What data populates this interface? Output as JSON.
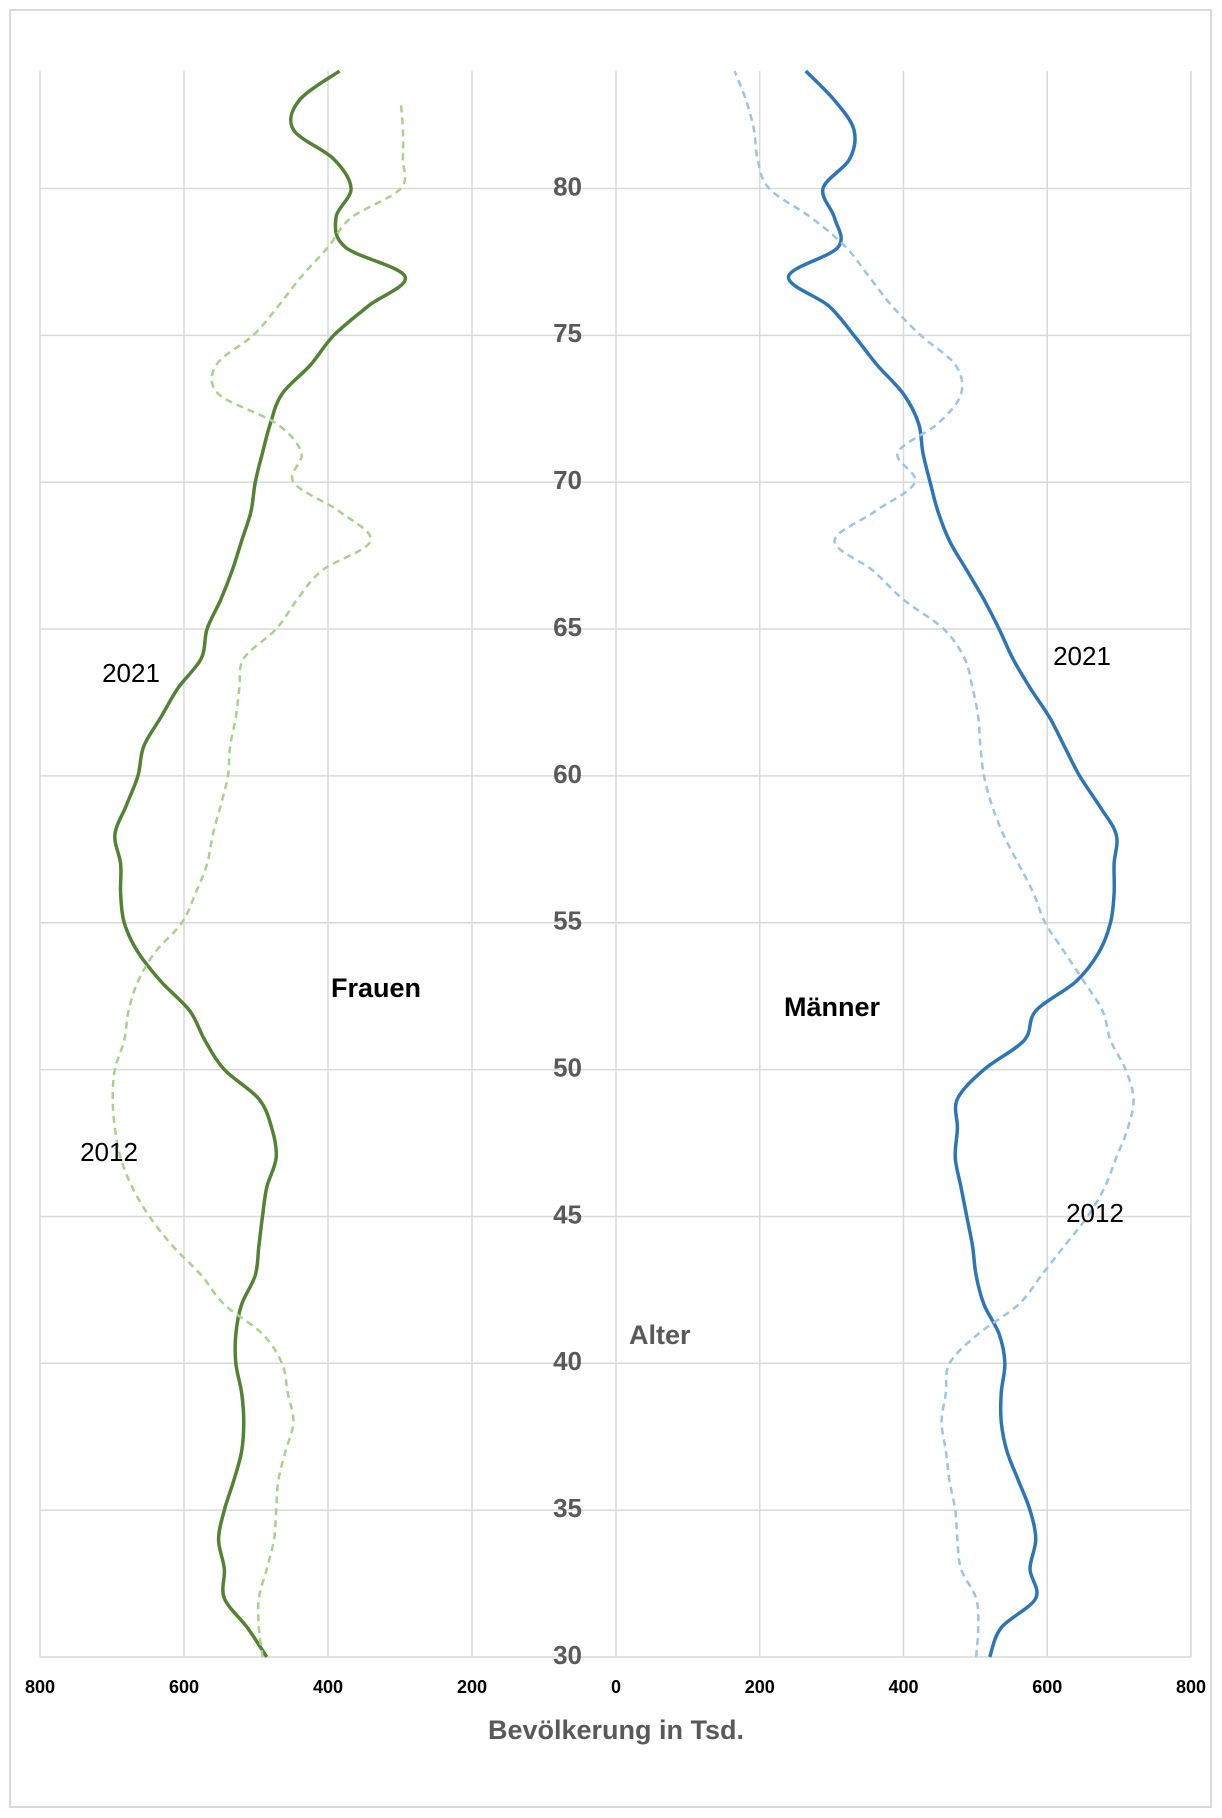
{
  "chart_data": [
    {
      "type": "line",
      "label": "Frauen",
      "y": [
        30,
        31,
        32,
        33,
        34,
        35,
        36,
        37,
        38,
        39,
        40,
        41,
        42,
        43,
        44,
        45,
        46,
        47,
        48,
        49,
        50,
        51,
        52,
        53,
        54,
        55,
        56,
        57,
        58,
        59,
        60,
        61,
        62,
        63,
        64,
        65,
        66,
        67,
        68,
        69,
        70,
        71,
        72,
        73,
        74,
        75,
        76,
        77,
        78,
        79,
        80,
        81,
        82,
        83,
        84
      ],
      "xlim": [
        800,
        0
      ],
      "xticks": [
        800,
        600,
        400,
        200
      ],
      "ylim": [
        30,
        84
      ],
      "grid": true,
      "series": [
        {
          "name": "2021",
          "color": "#548235",
          "dash": false,
          "values": [
            485,
            512,
            544,
            544,
            552,
            544,
            531,
            520,
            517,
            520,
            528,
            528,
            520,
            501,
            496,
            491,
            485,
            472,
            478,
            496,
            544,
            571,
            592,
            632,
            664,
            683,
            688,
            688,
            696,
            680,
            664,
            656,
            632,
            608,
            576,
            568,
            549,
            533,
            520,
            507,
            501,
            491,
            480,
            464,
            424,
            392,
            344,
            293,
            376,
            389,
            368,
            392,
            448,
            440,
            384
          ]
        },
        {
          "name": "2012",
          "color": "#a9d18e",
          "dash": true,
          "values": [
            491,
            496,
            496,
            485,
            475,
            472,
            469,
            459,
            448,
            456,
            464,
            491,
            544,
            576,
            616,
            648,
            672,
            688,
            696,
            699,
            696,
            683,
            677,
            664,
            640,
            603,
            584,
            568,
            560,
            549,
            539,
            536,
            528,
            523,
            517,
            472,
            443,
            408,
            341,
            384,
            448,
            437,
            472,
            552,
            555,
            504,
            469,
            437,
            400,
            368,
            299,
            296,
            296,
            299,
            null
          ]
        }
      ]
    },
    {
      "type": "line",
      "label": "Männer",
      "y": [
        30,
        31,
        32,
        33,
        34,
        35,
        36,
        37,
        38,
        39,
        40,
        41,
        42,
        43,
        44,
        45,
        46,
        47,
        48,
        49,
        50,
        51,
        52,
        53,
        54,
        55,
        56,
        57,
        58,
        59,
        60,
        61,
        62,
        63,
        64,
        65,
        66,
        67,
        68,
        69,
        70,
        71,
        72,
        73,
        74,
        75,
        76,
        77,
        78,
        79,
        80,
        81,
        82,
        83,
        84
      ],
      "xlim": [
        0,
        800
      ],
      "xticks": [
        0,
        200,
        400,
        600,
        800
      ],
      "ylim": [
        30,
        84
      ],
      "yticks": [
        30,
        35,
        40,
        45,
        50,
        55,
        60,
        65,
        70,
        75,
        80
      ],
      "grid": true,
      "ylabel": "Alter",
      "xlabel": "Bevölkerung in Tsd.",
      "series": [
        {
          "name": "2021",
          "color": "#2e75b6",
          "dash": false,
          "values": [
            520,
            536,
            584,
            576,
            584,
            576,
            560,
            544,
            536,
            536,
            541,
            533,
            512,
            501,
            496,
            488,
            480,
            472,
            475,
            475,
            512,
            568,
            584,
            640,
            672,
            688,
            693,
            693,
            696,
            672,
            645,
            624,
            603,
            576,
            552,
            533,
            512,
            488,
            464,
            448,
            437,
            427,
            421,
            400,
            363,
            331,
            296,
            240,
            309,
            304,
            288,
            325,
            331,
            304,
            264
          ]
        },
        {
          "name": "2012",
          "color": "#9dc3e6",
          "dash": true,
          "values": [
            501,
            504,
            501,
            480,
            475,
            472,
            464,
            459,
            453,
            459,
            464,
            504,
            560,
            592,
            624,
            656,
            680,
            696,
            712,
            720,
            709,
            688,
            677,
            651,
            624,
            597,
            581,
            560,
            539,
            523,
            512,
            507,
            504,
            496,
            485,
            456,
            400,
            357,
            304,
            360,
            416,
            392,
            448,
            480,
            472,
            424,
            384,
            352,
            320,
            272,
            213,
            197,
            192,
            181,
            165
          ]
        }
      ]
    }
  ]
}
